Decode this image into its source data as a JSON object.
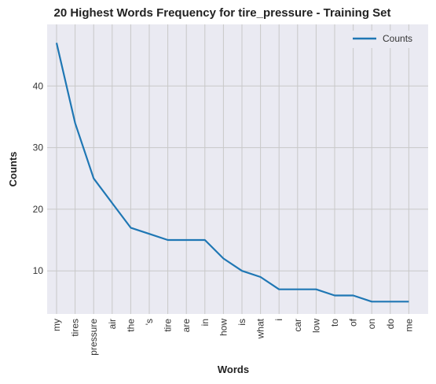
{
  "chart_data": {
    "type": "line",
    "title": "20 Highest Words Frequency for tire_pressure - Training Set",
    "xlabel": "Words",
    "ylabel": "Counts",
    "categories": [
      "my",
      "tires",
      "pressure",
      "air",
      "the",
      "'s",
      "tire",
      "are",
      "in",
      "how",
      "is",
      "what",
      "i",
      "car",
      "low",
      "to",
      "of",
      "on",
      "do",
      "me"
    ],
    "series": [
      {
        "name": "Counts",
        "values": [
          47,
          34,
          25,
          21,
          17,
          16,
          15,
          15,
          15,
          12,
          10,
          9,
          7,
          7,
          7,
          6,
          6,
          5,
          5,
          5
        ],
        "color": "#1f77b4"
      }
    ],
    "ylim": [
      3,
      50
    ],
    "yticks": [
      10,
      20,
      30,
      40
    ],
    "grid": true,
    "legend_position": "top-right",
    "background": "#eaeaf2"
  }
}
